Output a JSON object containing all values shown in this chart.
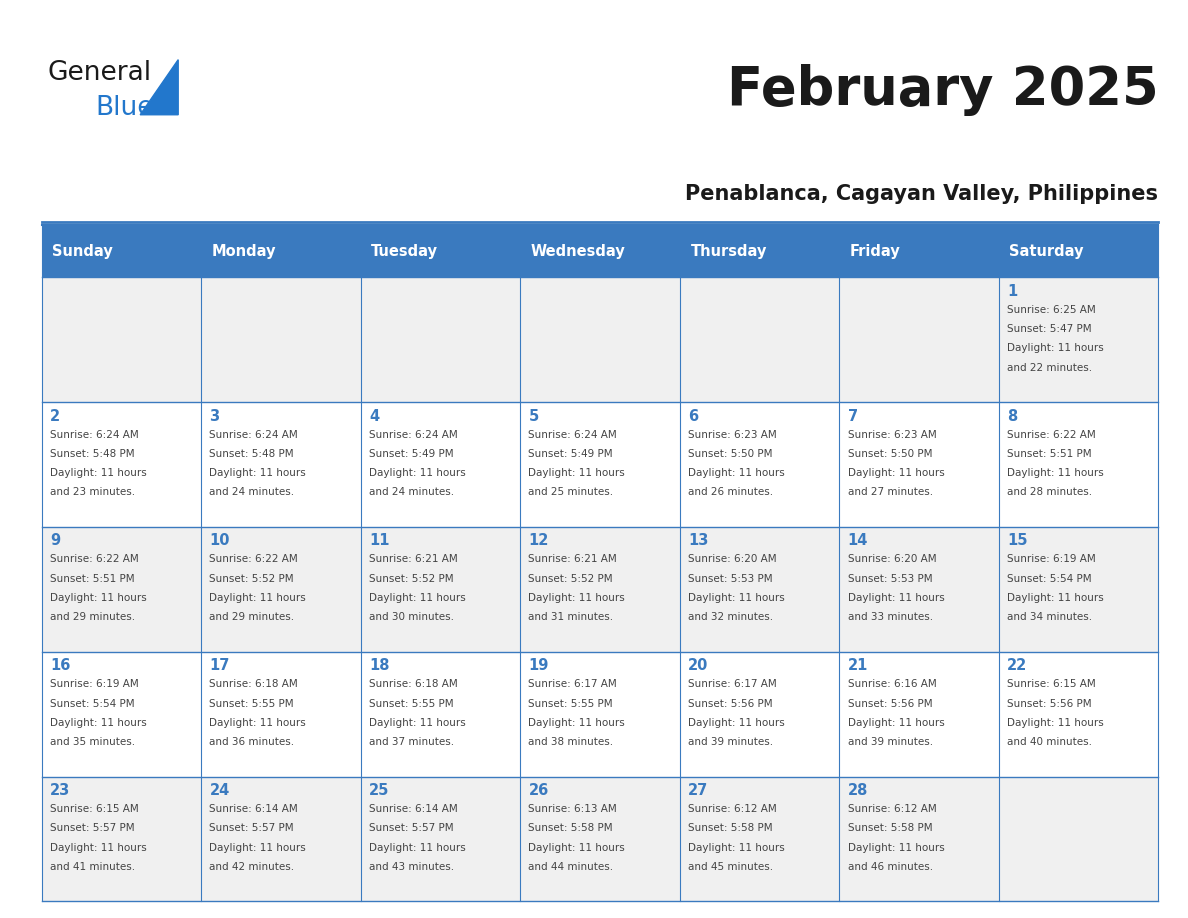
{
  "title": "February 2025",
  "subtitle": "Penablanca, Cagayan Valley, Philippines",
  "days_of_week": [
    "Sunday",
    "Monday",
    "Tuesday",
    "Wednesday",
    "Thursday",
    "Friday",
    "Saturday"
  ],
  "header_bg": "#3a7abf",
  "header_text": "#ffffff",
  "cell_bg_light": "#f0f0f0",
  "cell_bg_white": "#ffffff",
  "border_color": "#3a7abf",
  "day_num_color": "#3a7abf",
  "cell_text_color": "#444444",
  "title_color": "#1a1a1a",
  "subtitle_color": "#1a1a1a",
  "calendar_data": [
    [
      null,
      null,
      null,
      null,
      null,
      null,
      {
        "day": 1,
        "sunrise": "6:25 AM",
        "sunset": "5:47 PM",
        "daylight": "11 hours and 22 minutes."
      }
    ],
    [
      {
        "day": 2,
        "sunrise": "6:24 AM",
        "sunset": "5:48 PM",
        "daylight": "11 hours and 23 minutes."
      },
      {
        "day": 3,
        "sunrise": "6:24 AM",
        "sunset": "5:48 PM",
        "daylight": "11 hours and 24 minutes."
      },
      {
        "day": 4,
        "sunrise": "6:24 AM",
        "sunset": "5:49 PM",
        "daylight": "11 hours and 24 minutes."
      },
      {
        "day": 5,
        "sunrise": "6:24 AM",
        "sunset": "5:49 PM",
        "daylight": "11 hours and 25 minutes."
      },
      {
        "day": 6,
        "sunrise": "6:23 AM",
        "sunset": "5:50 PM",
        "daylight": "11 hours and 26 minutes."
      },
      {
        "day": 7,
        "sunrise": "6:23 AM",
        "sunset": "5:50 PM",
        "daylight": "11 hours and 27 minutes."
      },
      {
        "day": 8,
        "sunrise": "6:22 AM",
        "sunset": "5:51 PM",
        "daylight": "11 hours and 28 minutes."
      }
    ],
    [
      {
        "day": 9,
        "sunrise": "6:22 AM",
        "sunset": "5:51 PM",
        "daylight": "11 hours and 29 minutes."
      },
      {
        "day": 10,
        "sunrise": "6:22 AM",
        "sunset": "5:52 PM",
        "daylight": "11 hours and 29 minutes."
      },
      {
        "day": 11,
        "sunrise": "6:21 AM",
        "sunset": "5:52 PM",
        "daylight": "11 hours and 30 minutes."
      },
      {
        "day": 12,
        "sunrise": "6:21 AM",
        "sunset": "5:52 PM",
        "daylight": "11 hours and 31 minutes."
      },
      {
        "day": 13,
        "sunrise": "6:20 AM",
        "sunset": "5:53 PM",
        "daylight": "11 hours and 32 minutes."
      },
      {
        "day": 14,
        "sunrise": "6:20 AM",
        "sunset": "5:53 PM",
        "daylight": "11 hours and 33 minutes."
      },
      {
        "day": 15,
        "sunrise": "6:19 AM",
        "sunset": "5:54 PM",
        "daylight": "11 hours and 34 minutes."
      }
    ],
    [
      {
        "day": 16,
        "sunrise": "6:19 AM",
        "sunset": "5:54 PM",
        "daylight": "11 hours and 35 minutes."
      },
      {
        "day": 17,
        "sunrise": "6:18 AM",
        "sunset": "5:55 PM",
        "daylight": "11 hours and 36 minutes."
      },
      {
        "day": 18,
        "sunrise": "6:18 AM",
        "sunset": "5:55 PM",
        "daylight": "11 hours and 37 minutes."
      },
      {
        "day": 19,
        "sunrise": "6:17 AM",
        "sunset": "5:55 PM",
        "daylight": "11 hours and 38 minutes."
      },
      {
        "day": 20,
        "sunrise": "6:17 AM",
        "sunset": "5:56 PM",
        "daylight": "11 hours and 39 minutes."
      },
      {
        "day": 21,
        "sunrise": "6:16 AM",
        "sunset": "5:56 PM",
        "daylight": "11 hours and 39 minutes."
      },
      {
        "day": 22,
        "sunrise": "6:15 AM",
        "sunset": "5:56 PM",
        "daylight": "11 hours and 40 minutes."
      }
    ],
    [
      {
        "day": 23,
        "sunrise": "6:15 AM",
        "sunset": "5:57 PM",
        "daylight": "11 hours and 41 minutes."
      },
      {
        "day": 24,
        "sunrise": "6:14 AM",
        "sunset": "5:57 PM",
        "daylight": "11 hours and 42 minutes."
      },
      {
        "day": 25,
        "sunrise": "6:14 AM",
        "sunset": "5:57 PM",
        "daylight": "11 hours and 43 minutes."
      },
      {
        "day": 26,
        "sunrise": "6:13 AM",
        "sunset": "5:58 PM",
        "daylight": "11 hours and 44 minutes."
      },
      {
        "day": 27,
        "sunrise": "6:12 AM",
        "sunset": "5:58 PM",
        "daylight": "11 hours and 45 minutes."
      },
      {
        "day": 28,
        "sunrise": "6:12 AM",
        "sunset": "5:58 PM",
        "daylight": "11 hours and 46 minutes."
      },
      null
    ]
  ],
  "logo_general_color": "#1a1a1a",
  "logo_blue_color": "#2277cc",
  "logo_triangle_color": "#2277cc"
}
